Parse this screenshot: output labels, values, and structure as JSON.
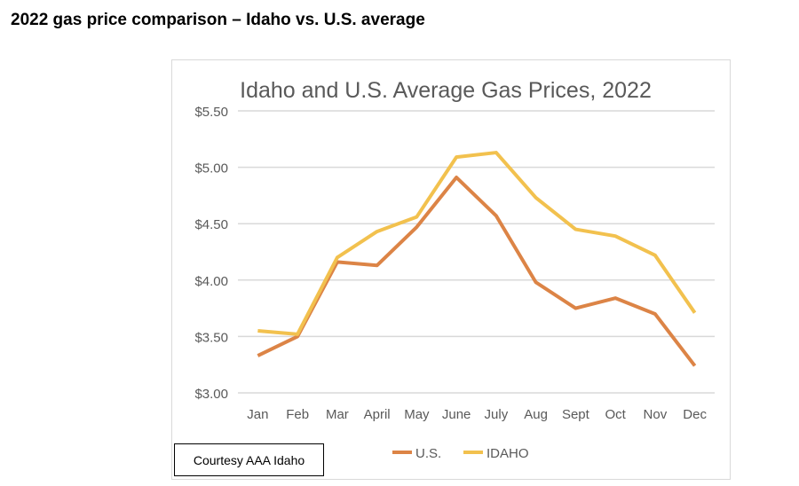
{
  "page_title": "2022 gas price comparison – Idaho vs. U.S. average",
  "courtesy": "Courtesy AAA Idaho",
  "chart_data": {
    "type": "line",
    "title": "Idaho and U.S. Average Gas Prices, 2022",
    "xlabel": "",
    "ylabel": "",
    "categories": [
      "Jan",
      "Feb",
      "Mar",
      "April",
      "May",
      "June",
      "July",
      "Aug",
      "Sept",
      "Oct",
      "Nov",
      "Dec"
    ],
    "ylim": [
      3.0,
      5.5
    ],
    "yticks": [
      3.0,
      3.5,
      4.0,
      4.5,
      5.0,
      5.5
    ],
    "ytick_labels": [
      "$3.00",
      "$3.50",
      "$4.00",
      "$4.50",
      "$5.00",
      "$5.50"
    ],
    "grid": true,
    "legend_position": "bottom",
    "series": [
      {
        "name": "U.S.",
        "color": "#DC8446",
        "values": [
          3.33,
          3.5,
          4.16,
          4.13,
          4.47,
          4.91,
          4.57,
          3.98,
          3.75,
          3.84,
          3.7,
          3.24
        ]
      },
      {
        "name": "IDAHO",
        "color": "#F2C14E",
        "values": [
          3.55,
          3.52,
          4.2,
          4.43,
          4.56,
          5.09,
          5.13,
          4.73,
          4.45,
          4.39,
          4.22,
          3.71
        ]
      }
    ]
  }
}
